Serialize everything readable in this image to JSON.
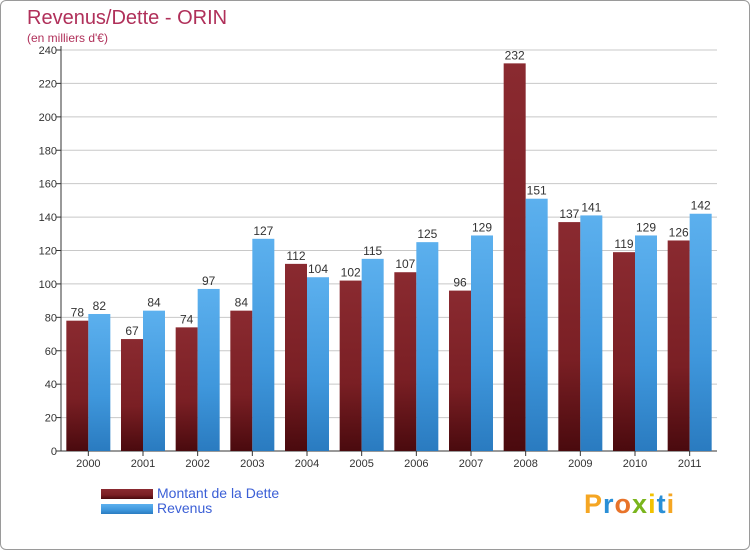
{
  "title": "Revenus/Dette - ORIN",
  "subtitle": "(en milliers d'€)",
  "logo": {
    "text": "Proxiti",
    "letters": [
      "P",
      "r",
      "o",
      "x",
      "i",
      "t",
      "i"
    ],
    "colors": [
      "#f5a623",
      "#2a8fd6",
      "#e8732a",
      "#7ab51d",
      "#f2c200",
      "#2a8fd6",
      "#f5a623"
    ]
  },
  "colors": {
    "dette": "#7a1f24",
    "revenus": "#3f97dc",
    "axis": "#333333",
    "grid": "#c8c8c8",
    "title": "#b0305a",
    "legend_text": "#3b5fd6"
  },
  "chart_data": {
    "type": "bar",
    "title": "Revenus/Dette - ORIN",
    "ylabel": "(en milliers d'€)",
    "xlabel": "",
    "ylim": [
      0,
      240
    ],
    "yticks": [
      0,
      20,
      40,
      60,
      80,
      100,
      120,
      140,
      160,
      180,
      200,
      220,
      240
    ],
    "categories": [
      "2000",
      "2001",
      "2002",
      "2003",
      "2004",
      "2005",
      "2006",
      "2007",
      "2008",
      "2009",
      "2010",
      "2011"
    ],
    "series": [
      {
        "name": "Montant de la Dette",
        "values": [
          78,
          67,
          74,
          84,
          112,
          102,
          107,
          96,
          232,
          137,
          119,
          126
        ]
      },
      {
        "name": "Revenus",
        "values": [
          82,
          84,
          97,
          127,
          104,
          115,
          125,
          129,
          151,
          141,
          129,
          142
        ]
      }
    ],
    "grid": true,
    "legend": "bottom-left"
  }
}
